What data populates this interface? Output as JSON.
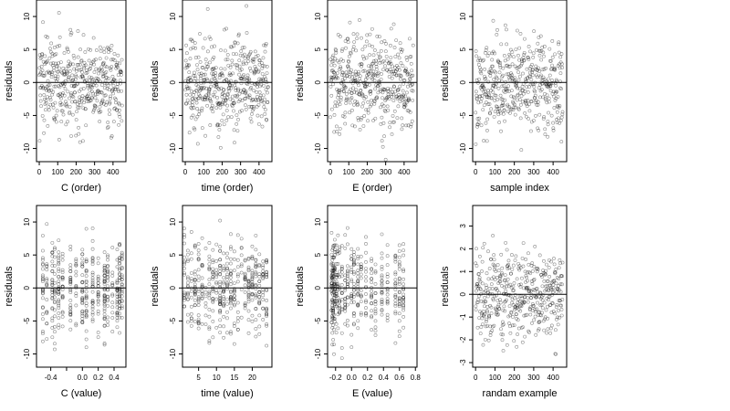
{
  "chart_data": [
    {
      "type": "scatter",
      "xlabel": "C (order)",
      "ylabel": "residuals",
      "xlim": [
        -15,
        470
      ],
      "ylim": [
        -12,
        12.5
      ],
      "xticks": [
        0,
        100,
        200,
        300,
        400
      ],
      "xtick_labels": [
        "0",
        "100",
        "200",
        "300",
        "400"
      ],
      "yticks": [
        -10,
        -5,
        0,
        5,
        10
      ],
      "ytick_labels": [
        "-10",
        "-5",
        "0",
        "5",
        "10"
      ],
      "hline": 0,
      "n_points": 450,
      "x_kind": "index",
      "spread": 3.5,
      "grid": false
    },
    {
      "type": "scatter",
      "xlabel": "time (order)",
      "ylabel": "residuals",
      "xlim": [
        -15,
        470
      ],
      "ylim": [
        -12,
        12.5
      ],
      "xticks": [
        0,
        100,
        200,
        300,
        400
      ],
      "xtick_labels": [
        "0",
        "100",
        "200",
        "300",
        "400"
      ],
      "yticks": [
        -10,
        -5,
        0,
        5,
        10
      ],
      "ytick_labels": [
        "-10",
        "-5",
        "0",
        "5",
        "10"
      ],
      "hline": 0,
      "n_points": 450,
      "x_kind": "index",
      "spread": 3.5,
      "grid": false
    },
    {
      "type": "scatter",
      "xlabel": "E (order)",
      "ylabel": "residuals",
      "xlim": [
        -15,
        470
      ],
      "ylim": [
        -12,
        12.5
      ],
      "xticks": [
        0,
        100,
        200,
        300,
        400
      ],
      "xtick_labels": [
        "0",
        "100",
        "200",
        "300",
        "400"
      ],
      "yticks": [
        -10,
        -5,
        0,
        5,
        10
      ],
      "ytick_labels": [
        "-10",
        "-5",
        "0",
        "5",
        "10"
      ],
      "hline": 0,
      "n_points": 450,
      "x_kind": "index",
      "spread": 3.5,
      "grid": false
    },
    {
      "type": "scatter",
      "xlabel": "sample index",
      "ylabel": "residuals",
      "xlim": [
        -15,
        470
      ],
      "ylim": [
        -12,
        12.5
      ],
      "xticks": [
        0,
        100,
        200,
        300,
        400
      ],
      "xtick_labels": [
        "0",
        "100",
        "200",
        "300",
        "400"
      ],
      "yticks": [
        -10,
        -5,
        0,
        5,
        10
      ],
      "ytick_labels": [
        "-10",
        "-5",
        "0",
        "5",
        "10"
      ],
      "hline": 0,
      "n_points": 450,
      "x_kind": "index",
      "spread": 3.5,
      "grid": false
    },
    {
      "type": "scatter",
      "xlabel": "C (value)",
      "ylabel": "residuals",
      "xlim": [
        -0.58,
        0.55
      ],
      "ylim": [
        -12,
        12.5
      ],
      "xticks": [
        -0.4,
        -0.2,
        0.0,
        0.2,
        0.4
      ],
      "xtick_labels": [
        "-0.4",
        "",
        "0.0",
        "0.2",
        "0.4"
      ],
      "yticks": [
        -10,
        -5,
        0,
        5,
        10
      ],
      "ytick_labels": [
        "-10",
        "-5",
        "0",
        "5",
        "10"
      ],
      "hline": 0,
      "n_points": 450,
      "x_kind": "levels",
      "spread": 3.5,
      "grid": false,
      "x_levels": [
        -0.5,
        -0.45,
        -0.38,
        -0.35,
        -0.3,
        -0.25,
        -0.15,
        -0.08,
        0.0,
        0.05,
        0.13,
        0.2,
        0.28,
        0.32,
        0.38,
        0.44,
        0.47,
        0.5
      ]
    },
    {
      "type": "scatter",
      "xlabel": "time (value)",
      "ylabel": "residuals",
      "xlim": [
        0.5,
        25.5
      ],
      "ylim": [
        -12,
        12.5
      ],
      "xticks": [
        5,
        10,
        15,
        20
      ],
      "xtick_labels": [
        "5",
        "10",
        "15",
        "20"
      ],
      "yticks": [
        -10,
        -5,
        0,
        5,
        10
      ],
      "ytick_labels": [
        "-10",
        "-5",
        "0",
        "5",
        "10"
      ],
      "hline": 0,
      "n_points": 450,
      "x_kind": "levels",
      "spread": 3.5,
      "grid": false,
      "x_levels": [
        1,
        2,
        3,
        4,
        5,
        6,
        7,
        8,
        9,
        10,
        11,
        12,
        13,
        14,
        15,
        16,
        17,
        18,
        19,
        20,
        21,
        22,
        23,
        24
      ]
    },
    {
      "type": "scatter",
      "xlabel": "E (value)",
      "ylabel": "residuals",
      "xlim": [
        -0.3,
        0.82
      ],
      "ylim": [
        -12,
        12.5
      ],
      "xticks": [
        -0.2,
        0.0,
        0.2,
        0.4,
        0.6,
        0.8
      ],
      "xtick_labels": [
        "-0.2",
        "0.0",
        "0.2",
        "0.4",
        "0.6",
        "0.8"
      ],
      "yticks": [
        -10,
        -5,
        0,
        5,
        10
      ],
      "ytick_labels": [
        "-10",
        "-5",
        "0",
        "5",
        "10"
      ],
      "hline": 0,
      "n_points": 450,
      "x_kind": "levels",
      "spread": 3.5,
      "grid": false,
      "x_levels": [
        -0.25,
        -0.24,
        -0.23,
        -0.22,
        -0.21,
        -0.19,
        -0.17,
        -0.15,
        -0.12,
        -0.08,
        -0.05,
        0.0,
        0.03,
        0.08,
        0.12,
        0.18,
        0.25,
        0.3,
        0.38,
        0.45,
        0.55,
        0.6,
        0.65
      ]
    },
    {
      "type": "scatter",
      "xlabel": "randam example",
      "ylabel": "residuals",
      "xlim": [
        -15,
        470
      ],
      "ylim": [
        -3.2,
        3.9
      ],
      "xticks": [
        0,
        100,
        200,
        300,
        400
      ],
      "xtick_labels": [
        "0",
        "100",
        "200",
        "300",
        "400"
      ],
      "yticks": [
        -3,
        -2,
        -1,
        0,
        1,
        2,
        3
      ],
      "ytick_labels": [
        "-3",
        "-2",
        "-1",
        "0",
        "1",
        "2",
        "3"
      ],
      "hline": 0,
      "n_points": 450,
      "x_kind": "index",
      "spread": 1.0,
      "grid": false
    }
  ]
}
